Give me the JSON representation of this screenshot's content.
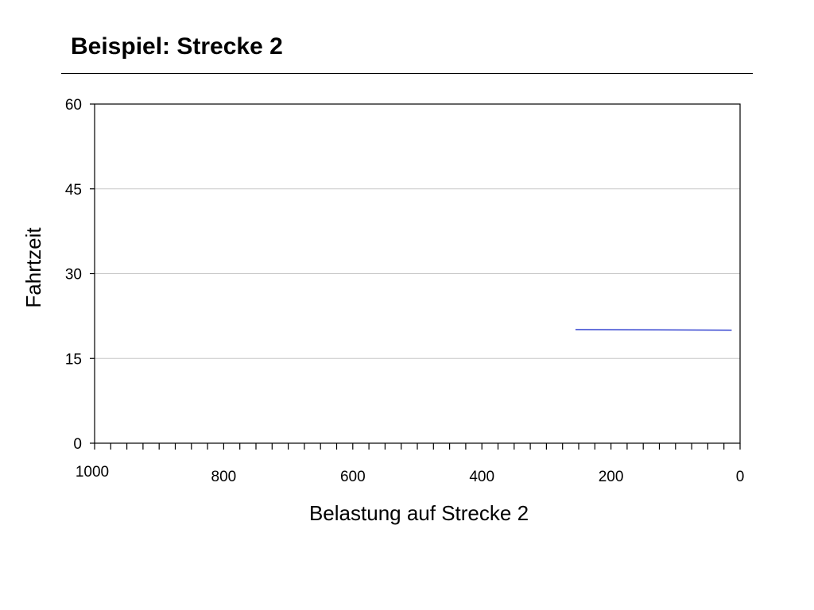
{
  "slide": {
    "title": "Beispiel: Strecke 2"
  },
  "chart_data": {
    "type": "line",
    "xlabel": "Belastung auf Strecke 2",
    "ylabel": "Fahrtzeit",
    "xlim": [
      1000,
      0
    ],
    "ylim": [
      0,
      60
    ],
    "x_reversed": true,
    "x_ticks": [
      1000,
      800,
      600,
      400,
      200,
      0
    ],
    "y_ticks": [
      0,
      15,
      30,
      45,
      60
    ],
    "x_minor_tick_step": 25,
    "grid": "horizontal",
    "legend": "none",
    "series": [
      {
        "color": "#2233cc",
        "points": [
          {
            "x": 255,
            "y": 20.1
          },
          {
            "x": 13,
            "y": 20.0
          }
        ]
      }
    ]
  }
}
